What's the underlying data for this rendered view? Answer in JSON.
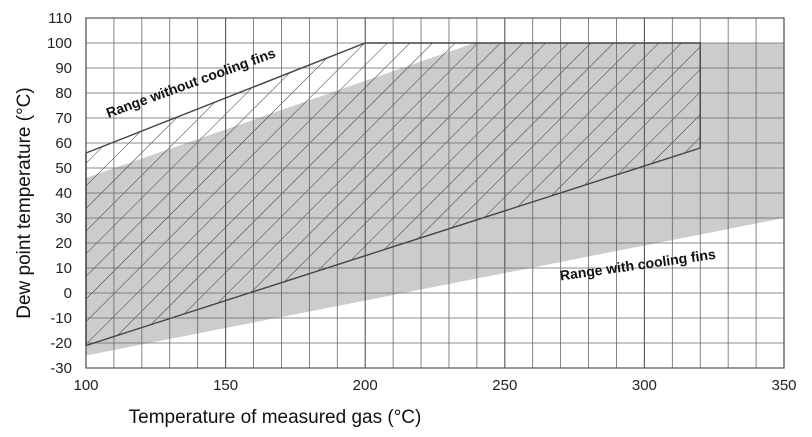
{
  "chart_data": {
    "type": "area",
    "xlabel": "Temperature of measured gas (°C)",
    "ylabel": "Dew point temperature (°C)",
    "xlim": [
      100,
      350
    ],
    "ylim": [
      -30,
      110
    ],
    "x_ticks": [
      100,
      150,
      200,
      250,
      300,
      350
    ],
    "y_ticks": [
      110,
      100,
      90,
      80,
      70,
      60,
      50,
      40,
      30,
      20,
      10,
      0,
      -10,
      -20,
      -30
    ],
    "minor_x_step": 10,
    "grid": true,
    "annotations": [
      {
        "text": "Range without cooling fins",
        "x": 108,
        "y": 70,
        "angle_deg": -20
      },
      {
        "text": "Range with cooling fins",
        "x": 270,
        "y": 5,
        "angle_deg": -8
      }
    ],
    "series": [
      {
        "name": "Range with cooling fins",
        "fill": "#cccccc",
        "style": "solid",
        "polygon": [
          [
            100,
            46
          ],
          [
            239,
            100
          ],
          [
            350,
            100
          ],
          [
            350,
            30
          ],
          [
            100,
            -25
          ]
        ]
      },
      {
        "name": "Range without cooling fins",
        "fill": "none",
        "style": "hatched",
        "polygon": [
          [
            100,
            56
          ],
          [
            200,
            100
          ],
          [
            320,
            100
          ],
          [
            320,
            58
          ],
          [
            100,
            -21
          ]
        ]
      }
    ]
  }
}
